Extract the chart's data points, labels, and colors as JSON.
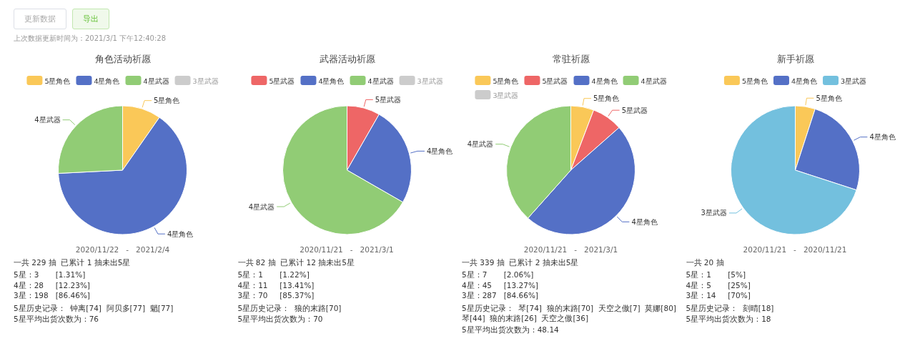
{
  "chart_data": [
    {
      "type": "other",
      "annotations": [
        "更新数据",
        "导出",
        "上次数据更新时间为：2021/3/1 下午12:40:28"
      ]
    },
    {
      "type": "pie",
      "title": "角色活动祈愿",
      "legend": "top",
      "categories": [
        "5星角色",
        "4星角色",
        "4星武器",
        "3星武器"
      ],
      "values": [
        9.7,
        64.5,
        25.8,
        null
      ],
      "colors": [
        "#fac858",
        "#5470c6",
        "#91cc75",
        "#cccccc"
      ],
      "annotations": [
        "2020/11/22   -   2021/2/4",
        "一共 229 抽  已累计 1 抽未出5星",
        "5星：3       [1.31%]",
        "4星：28     [12.23%]",
        "3星：198   [86.46%]",
        "5星历史记录：  钟离[74]  阿贝多[77]  魈[77]",
        "5星平均出货次数为：76"
      ]
    },
    {
      "type": "pie",
      "title": "武器活动祈愿",
      "legend": "top",
      "categories": [
        "5星武器",
        "4星角色",
        "4星武器",
        "3星武器"
      ],
      "values": [
        8.3,
        25,
        66.7,
        null
      ],
      "colors": [
        "#ee6666",
        "#5470c6",
        "#91cc75",
        "#cccccc"
      ],
      "annotations": [
        "2020/11/21   -   2021/3/1",
        "一共 82 抽  已累计 12 抽未出5星",
        "5星：1       [1.22%]",
        "4星：11     [13.41%]",
        "3星：70     [85.37%]",
        "5星历史记录：  狼的末路[70]",
        "5星平均出货次数为：70"
      ]
    },
    {
      "type": "pie",
      "title": "常驻祈愿",
      "legend": "top",
      "categories": [
        "5星角色",
        "5星武器",
        "4星角色",
        "4星武器",
        "3星武器"
      ],
      "values": [
        5.8,
        7.7,
        48.1,
        38.4,
        null
      ],
      "colors": [
        "#fac858",
        "#ee6666",
        "#5470c6",
        "#91cc75",
        "#cccccc"
      ],
      "annotations": [
        "2020/11/21   -   2021/3/1",
        "一共 339 抽  已累计 2 抽未出5星",
        "5星：7       [2.06%]",
        "4星：45     [13.27%]",
        "3星：287   [84.66%]",
        "5星历史记录：  琴[74]  狼的末路[70]  天空之傲[7]  莫娜[80]  琴[44]  狼的末路[26]  天空之傲[36]",
        "5星平均出货次数为：48.14"
      ]
    },
    {
      "type": "pie",
      "title": "新手祈愿",
      "legend": "top",
      "categories": [
        "5星角色",
        "4星角色",
        "3星武器"
      ],
      "values": [
        5,
        25,
        70
      ],
      "colors": [
        "#fac858",
        "#5470c6",
        "#73c0de"
      ],
      "annotations": [
        "2020/11/21   -   2020/11/21",
        "一共 20 抽",
        "5星：1       [5%]",
        "4星：5       [25%]",
        "3星：14     [70%]",
        "5星历史记录：  刻晴[18]",
        "5星平均出货次数为：18"
      ]
    }
  ]
}
